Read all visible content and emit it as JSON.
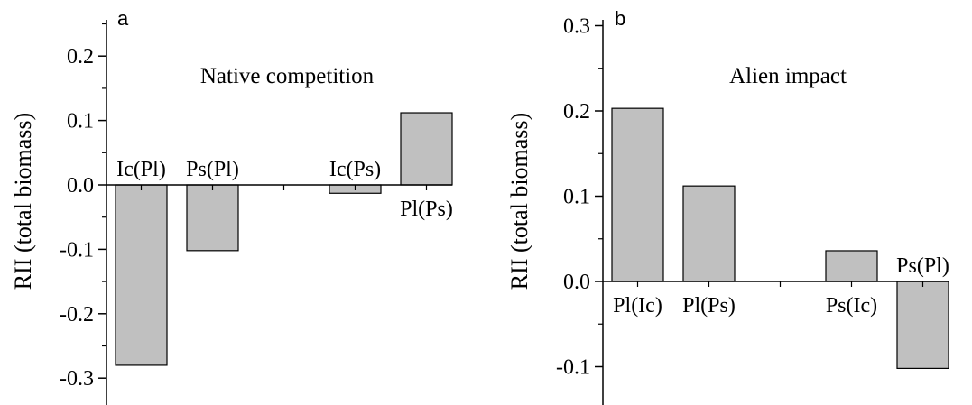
{
  "colors": {
    "bar_fill": "#c0c0c0",
    "bar_stroke": "#000000",
    "axis": "#000000"
  },
  "chart_data": [
    {
      "type": "bar",
      "panel_label": "a",
      "title": "Native competition",
      "ylabel": "RII (total biomass)",
      "xlabel": "",
      "ylim": [
        -0.31,
        0.25
      ],
      "yticks": [
        -0.3,
        -0.2,
        -0.1,
        0.0,
        0.1,
        0.2
      ],
      "ytick_labels": [
        "-0.3",
        "-0.2",
        "-0.1",
        "0.0",
        "0.1",
        "0.2"
      ],
      "grid": false,
      "categories": [
        "Ic(Pl)",
        "Ps(Pl)",
        "",
        "Ic(Ps)",
        "Pl(Ps)"
      ],
      "values": [
        -0.28,
        -0.102,
        null,
        -0.013,
        0.112
      ]
    },
    {
      "type": "bar",
      "panel_label": "b",
      "title": "Alien impact",
      "ylabel": "RII (total biomass)",
      "xlabel": "",
      "ylim": [
        -0.145,
        0.3
      ],
      "yticks": [
        -0.1,
        0.0,
        0.1,
        0.2,
        0.3
      ],
      "ytick_labels": [
        "-0.1",
        "0.0",
        "0.1",
        "0.2",
        "0.3"
      ],
      "grid": false,
      "categories": [
        "Pl(Ic)",
        "Pl(Ps)",
        "",
        "Ps(Ic)",
        "Ps(Pl)"
      ],
      "values": [
        0.203,
        0.112,
        null,
        0.036,
        -0.102
      ]
    }
  ]
}
